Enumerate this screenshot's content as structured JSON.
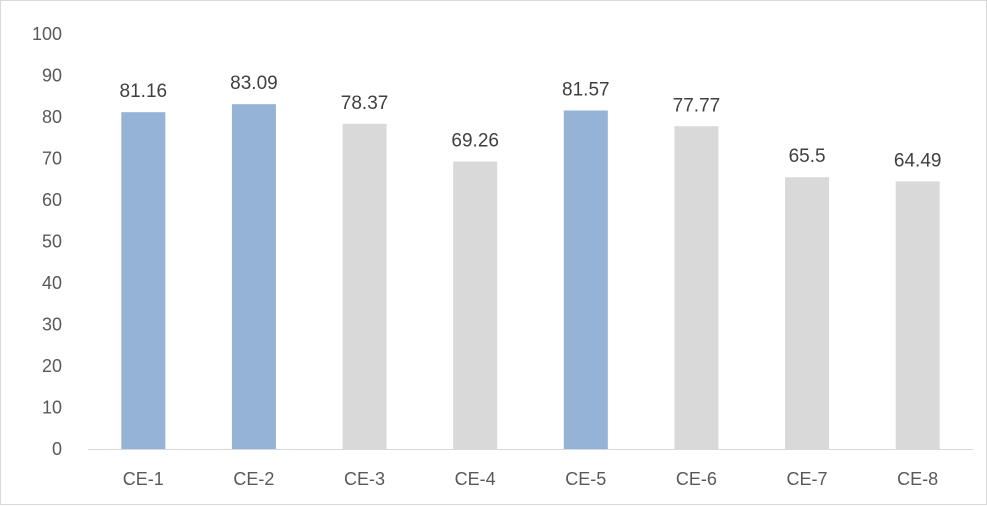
{
  "chart_data": {
    "type": "bar",
    "title": "",
    "xlabel": "",
    "ylabel": "",
    "categories": [
      "CE-1",
      "CE-2",
      "CE-3",
      "CE-4",
      "CE-5",
      "CE-6",
      "CE-7",
      "CE-8"
    ],
    "values": [
      81.16,
      83.09,
      78.37,
      69.26,
      81.57,
      77.77,
      65.5,
      64.49
    ],
    "value_labels": [
      "81.16",
      "83.09",
      "78.37",
      "69.26",
      "81.57",
      "77.77",
      "65.5",
      "64.49"
    ],
    "ylim": [
      0,
      100
    ],
    "yticks": [
      0,
      10,
      20,
      30,
      40,
      50,
      60,
      70,
      80,
      90,
      100
    ],
    "grid": false,
    "legend": "none",
    "highlighted_categories": [
      "CE-1",
      "CE-2",
      "CE-5"
    ],
    "colors": {
      "highlight": "#95b3d7",
      "default": "#d9d9d9",
      "axis": "#d9d9d9",
      "tick_text": "#595959",
      "label_text": "#404040"
    }
  }
}
